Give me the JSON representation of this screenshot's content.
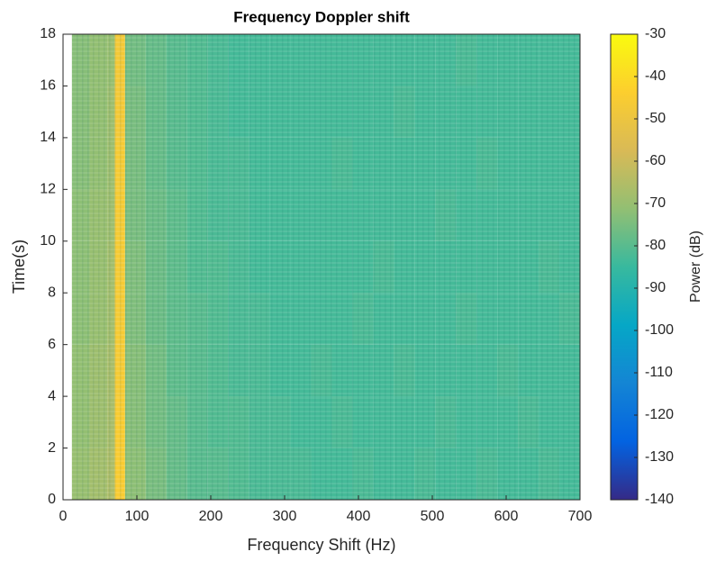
{
  "chart_data": {
    "type": "heatmap",
    "title": "Frequency Doppler shift",
    "xlabel": "Frequency Shift (Hz)",
    "ylabel": "Time(s)",
    "colorbar_label": "Power (dB)",
    "xbins": [
      12,
      36,
      60,
      70,
      84,
      112,
      140,
      168,
      196,
      224,
      252,
      280,
      308,
      336,
      364,
      392,
      420,
      448,
      476,
      504,
      532,
      560,
      588,
      616,
      644,
      672,
      700
    ],
    "ybins": [
      0,
      2,
      4,
      6,
      8,
      10,
      12,
      14,
      16,
      18
    ],
    "values": [
      [
        -70,
        -68,
        -66,
        -45,
        -72,
        -75,
        -78,
        -80,
        -80,
        -81,
        -82,
        -82,
        -82,
        -83,
        -83,
        -82,
        -83,
        -83,
        -82,
        -83,
        -83,
        -82,
        -83,
        -83,
        -82,
        -83
      ],
      [
        -71,
        -69,
        -67,
        -45,
        -73,
        -76,
        -78,
        -80,
        -81,
        -81,
        -82,
        -82,
        -83,
        -83,
        -82,
        -83,
        -83,
        -83,
        -83,
        -82,
        -83,
        -83,
        -83,
        -82,
        -83,
        -83
      ],
      [
        -71,
        -69,
        -67,
        -46,
        -73,
        -76,
        -79,
        -80,
        -81,
        -82,
        -82,
        -83,
        -83,
        -82,
        -83,
        -83,
        -83,
        -82,
        -83,
        -83,
        -83,
        -83,
        -82,
        -83,
        -83,
        -83
      ],
      [
        -72,
        -70,
        -68,
        -46,
        -74,
        -77,
        -79,
        -80,
        -81,
        -82,
        -82,
        -83,
        -83,
        -83,
        -83,
        -82,
        -83,
        -83,
        -83,
        -83,
        -82,
        -83,
        -83,
        -83,
        -83,
        -82
      ],
      [
        -72,
        -70,
        -68,
        -46,
        -74,
        -77,
        -79,
        -81,
        -81,
        -82,
        -83,
        -83,
        -83,
        -83,
        -83,
        -83,
        -82,
        -83,
        -83,
        -83,
        -83,
        -83,
        -83,
        -83,
        -82,
        -83
      ],
      [
        -72,
        -70,
        -69,
        -46,
        -75,
        -77,
        -79,
        -81,
        -82,
        -82,
        -83,
        -83,
        -83,
        -83,
        -83,
        -83,
        -83,
        -83,
        -83,
        -82,
        -83,
        -83,
        -83,
        -83,
        -83,
        -83
      ],
      [
        -73,
        -71,
        -69,
        -46,
        -75,
        -78,
        -80,
        -81,
        -82,
        -82,
        -83,
        -83,
        -83,
        -83,
        -82,
        -83,
        -83,
        -83,
        -83,
        -83,
        -83,
        -82,
        -83,
        -83,
        -83,
        -83
      ],
      [
        -73,
        -71,
        -69,
        -47,
        -75,
        -78,
        -80,
        -81,
        -82,
        -83,
        -83,
        -83,
        -83,
        -83,
        -83,
        -83,
        -83,
        -82,
        -83,
        -83,
        -83,
        -83,
        -83,
        -83,
        -83,
        -83
      ],
      [
        -73,
        -71,
        -70,
        -47,
        -76,
        -78,
        -80,
        -81,
        -82,
        -83,
        -83,
        -83,
        -83,
        -83,
        -83,
        -83,
        -83,
        -83,
        -83,
        -83,
        -82,
        -83,
        -83,
        -83,
        -83,
        -83
      ]
    ],
    "xlim": [
      0,
      700
    ],
    "xticks": [
      0,
      100,
      200,
      300,
      400,
      500,
      600,
      700
    ],
    "ylim": [
      0,
      18
    ],
    "yticks": [
      0,
      2,
      4,
      6,
      8,
      10,
      12,
      14,
      16,
      18
    ],
    "clim": [
      -140,
      -30
    ],
    "cticks": [
      -30,
      -40,
      -50,
      -60,
      -70,
      -80,
      -90,
      -100,
      -110,
      -120,
      -130,
      -140
    ],
    "colormap": [
      "#352a87",
      "#0363e1",
      "#1485d4",
      "#06a7c6",
      "#38b99e",
      "#92bf73",
      "#d9ba56",
      "#fcce2e",
      "#f9fb0e"
    ]
  }
}
